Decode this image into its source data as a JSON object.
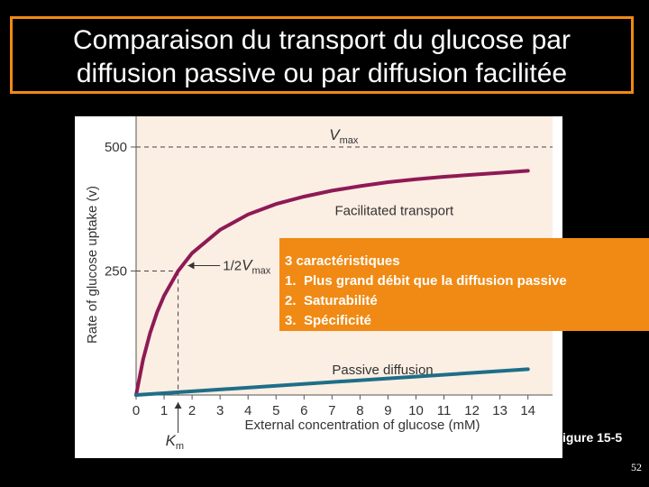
{
  "title": {
    "line1": "Comparaison du transport du glucose par",
    "line2": "diffusion passive ou par diffusion facilitée"
  },
  "callout": {
    "heading": "3 caractéristiques",
    "items": [
      {
        "num": "1.",
        "text": "Plus grand débit que la diffusion passive"
      },
      {
        "num": "2.",
        "text": "Saturabilité"
      },
      {
        "num": "3.",
        "text": "Spécificité"
      }
    ]
  },
  "figure_ref": "igure 15-5",
  "page_number": "52",
  "colors": {
    "background": "#000000",
    "accent": "#f08a14",
    "plot_bg": "#fbeee3",
    "facilitated_curve": "#8e1a55",
    "passive_line": "#1e6e88"
  },
  "chart_data": {
    "type": "line",
    "xlabel": "External concentration of glucose (mM)",
    "ylabel": "Rate of glucose uptake (v)",
    "xlim": [
      0,
      15
    ],
    "ylim": [
      0,
      570
    ],
    "x_ticks": [
      0,
      1,
      2,
      3,
      4,
      5,
      6,
      7,
      8,
      9,
      10,
      11,
      12,
      13,
      14
    ],
    "y_ticks": [
      250,
      500
    ],
    "grid": false,
    "vmax": 500,
    "km": 1.5,
    "annotations": {
      "vmax": "Vmax",
      "half_vmax": "1/2Vmax",
      "km": "Km",
      "km_sub": "m",
      "vmax_sub": "max"
    },
    "series": [
      {
        "name": "Facilitated transport",
        "x": [
          0,
          0.25,
          0.5,
          0.75,
          1,
          1.5,
          2,
          3,
          4,
          5,
          6,
          7,
          8,
          9,
          10,
          11,
          12,
          13,
          14
        ],
        "values": [
          0,
          72,
          125,
          167,
          200,
          250,
          286,
          333,
          364,
          385,
          400,
          412,
          421,
          429,
          435,
          440,
          444,
          448,
          452
        ]
      },
      {
        "name": "Passive diffusion",
        "x": [
          0,
          14
        ],
        "values": [
          0,
          52
        ]
      }
    ]
  }
}
